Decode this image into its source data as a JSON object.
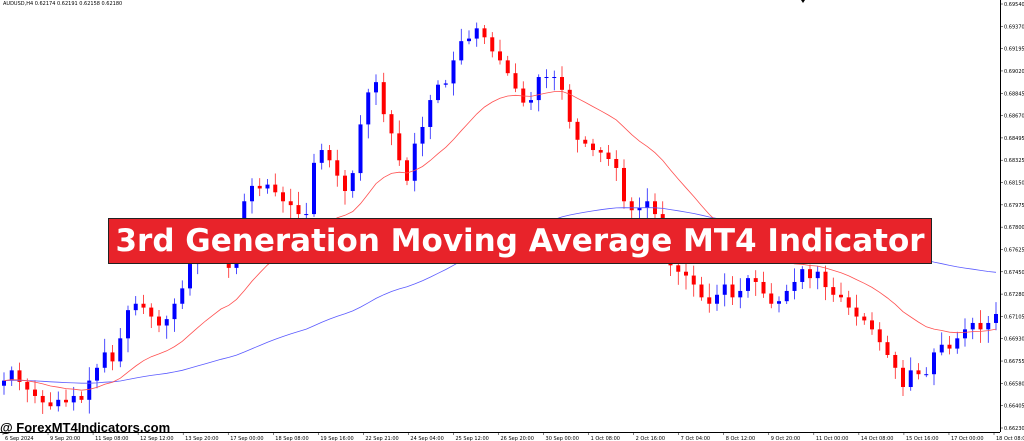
{
  "header": {
    "symbol_text": "AUDUSD,H4  0.62174  0.62191  0.62158  0.62180"
  },
  "banner": {
    "title": "3rd Generation Moving Average MT4 Indicator",
    "bg_color": "#e8232a"
  },
  "watermark": {
    "text": "@ ForexMT4Indicators.com"
  },
  "chart_data": {
    "type": "candlestick",
    "price_axis": {
      "min": 0.6623,
      "max": 0.6954,
      "ticks": [
        "0.69540",
        "0.69370",
        "0.69195",
        "0.69020",
        "0.68845",
        "0.68670",
        "0.68495",
        "0.68325",
        "0.68150",
        "0.67975",
        "0.67800",
        "0.67625",
        "0.67450",
        "0.67280",
        "0.67105",
        "0.66930",
        "0.66755",
        "0.66580",
        "0.66405",
        "0.66230"
      ]
    },
    "time_axis": {
      "labels": [
        "6 Sep 2024",
        "9 Sep 20:00",
        "11 Sep 08:00",
        "12 Sep 12:00",
        "13 Sep 20:00",
        "17 Sep 00:00",
        "18 Sep 08:00",
        "19 Sep 16:00",
        "22 Sep 21:00",
        "24 Sep 04:00",
        "25 Sep 12:00",
        "26 Sep 20:00",
        "30 Sep 00:00",
        "1 Oct 08:00",
        "2 Oct 16:00",
        "7 Oct 04:00",
        "8 Oct 12:00",
        "9 Oct 20:00",
        "11 Oct 00:00",
        "14 Oct 08:00",
        "15 Oct 16:00",
        "17 Oct 00:00",
        "18 Oct 08:00"
      ]
    },
    "bull_color": "#0000ff",
    "bear_color": "#ff0000",
    "ma_fast_color": "#ff5050",
    "ma_slow_color": "#5a5aff",
    "closes": [
      0.666,
      0.6668,
      0.6659,
      0.6653,
      0.6648,
      0.6643,
      0.664,
      0.6645,
      0.6643,
      0.6648,
      0.6645,
      0.666,
      0.667,
      0.6682,
      0.6675,
      0.6693,
      0.6715,
      0.672,
      0.6717,
      0.671,
      0.6703,
      0.6708,
      0.672,
      0.6732,
      0.6751,
      0.6755,
      0.6758,
      0.676,
      0.6762,
      0.6748,
      0.677,
      0.68,
      0.6812,
      0.681,
      0.6813,
      0.6807,
      0.68,
      0.6797,
      0.679,
      0.679,
      0.683,
      0.684,
      0.6832,
      0.682,
      0.6808,
      0.6822,
      0.686,
      0.6885,
      0.6893,
      0.6868,
      0.6853,
      0.6832,
      0.6816,
      0.6845,
      0.6858,
      0.6879,
      0.6891,
      0.6892,
      0.691,
      0.6925,
      0.6927,
      0.6935,
      0.6928,
      0.6917,
      0.691,
      0.69,
      0.6888,
      0.6877,
      0.6879,
      0.6897,
      0.6897,
      0.6897,
      0.6887,
      0.6862,
      0.6848,
      0.6845,
      0.684,
      0.6838,
      0.6833,
      0.6826,
      0.68,
      0.6793,
      0.6795,
      0.68,
      0.679,
      0.677,
      0.675,
      0.6745,
      0.6742,
      0.6735,
      0.6725,
      0.672,
      0.6727,
      0.6735,
      0.6725,
      0.673,
      0.674,
      0.6737,
      0.6728,
      0.672,
      0.6722,
      0.673,
      0.6737,
      0.6747,
      0.674,
      0.6745,
      0.6733,
      0.6727,
      0.6725,
      0.6717,
      0.671,
      0.6707,
      0.67,
      0.669,
      0.668,
      0.667,
      0.6655,
      0.6668,
      0.6665,
      0.6665,
      0.6682,
      0.6688,
      0.6685,
      0.6693,
      0.67,
      0.6705,
      0.67,
      0.6705,
      0.6712
    ]
  }
}
